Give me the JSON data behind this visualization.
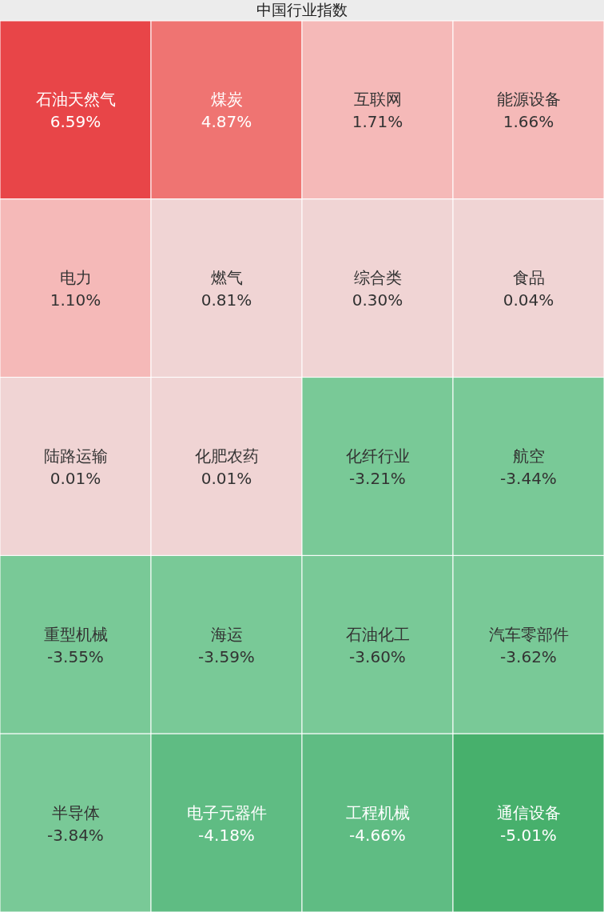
{
  "chart_data": {
    "type": "other",
    "title": "中国行业指数",
    "categories": [
      "石油天然气",
      "煤炭",
      "互联网",
      "能源设备",
      "电力",
      "燃气",
      "综合类",
      "食品",
      "陆路运输",
      "化肥农药",
      "化纤行业",
      "航空",
      "重型机械",
      "海运",
      "石油化工",
      "汽车零部件",
      "半导体",
      "电子元器件",
      "工程机械",
      "通信设备"
    ],
    "values": [
      6.59,
      4.87,
      1.71,
      1.66,
      1.1,
      0.81,
      0.3,
      0.04,
      0.01,
      0.01,
      -3.21,
      -3.44,
      -3.55,
      -3.59,
      -3.6,
      -3.62,
      -3.84,
      -4.18,
      -4.66,
      -5.01
    ],
    "value_labels": [
      "6.59%",
      "4.87%",
      "1.71%",
      "1.66%",
      "1.10%",
      "0.81%",
      "0.30%",
      "0.04%",
      "0.01%",
      "0.01%",
      "-3.21%",
      "-3.44%",
      "-3.55%",
      "-3.59%",
      "-3.60%",
      "-3.62%",
      "-3.84%",
      "-4.18%",
      "-4.66%",
      "-5.01%"
    ],
    "colors": [
      "#e84548",
      "#ef7472",
      "#f5b9b8",
      "#f5b9b8",
      "#f5b9b8",
      "#f0d4d4",
      "#f0d4d4",
      "#f0d4d4",
      "#f0d4d4",
      "#f0d4d4",
      "#79c997",
      "#79c997",
      "#79c997",
      "#79c997",
      "#79c997",
      "#79c997",
      "#79c997",
      "#5fbc83",
      "#5fbc83",
      "#47b06c"
    ]
  }
}
